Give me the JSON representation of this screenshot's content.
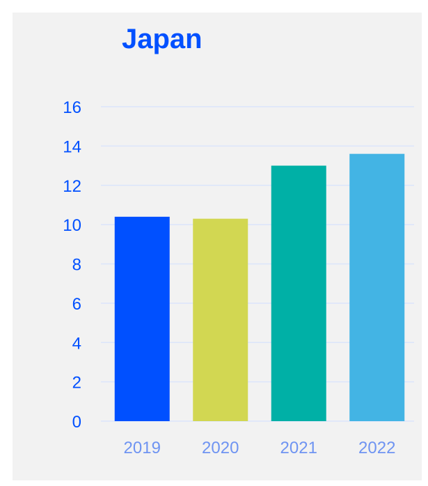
{
  "chart_data": {
    "type": "bar",
    "title": "Japan",
    "xlabel": "",
    "ylabel": "",
    "categories": [
      "2019",
      "2020",
      "2021",
      "2022"
    ],
    "values": [
      10.4,
      10.3,
      13.0,
      13.6
    ],
    "ylim": [
      0,
      16
    ],
    "yticks": [
      0,
      2,
      4,
      6,
      8,
      10,
      12,
      14,
      16
    ],
    "grid": true,
    "bar_colors": [
      "#0050ff",
      "#d2d752",
      "#00b0a6",
      "#43b4e4"
    ],
    "title_color": "#0050ff",
    "ytick_color": "#0050ff",
    "xtick_color": "#6f94f2"
  }
}
